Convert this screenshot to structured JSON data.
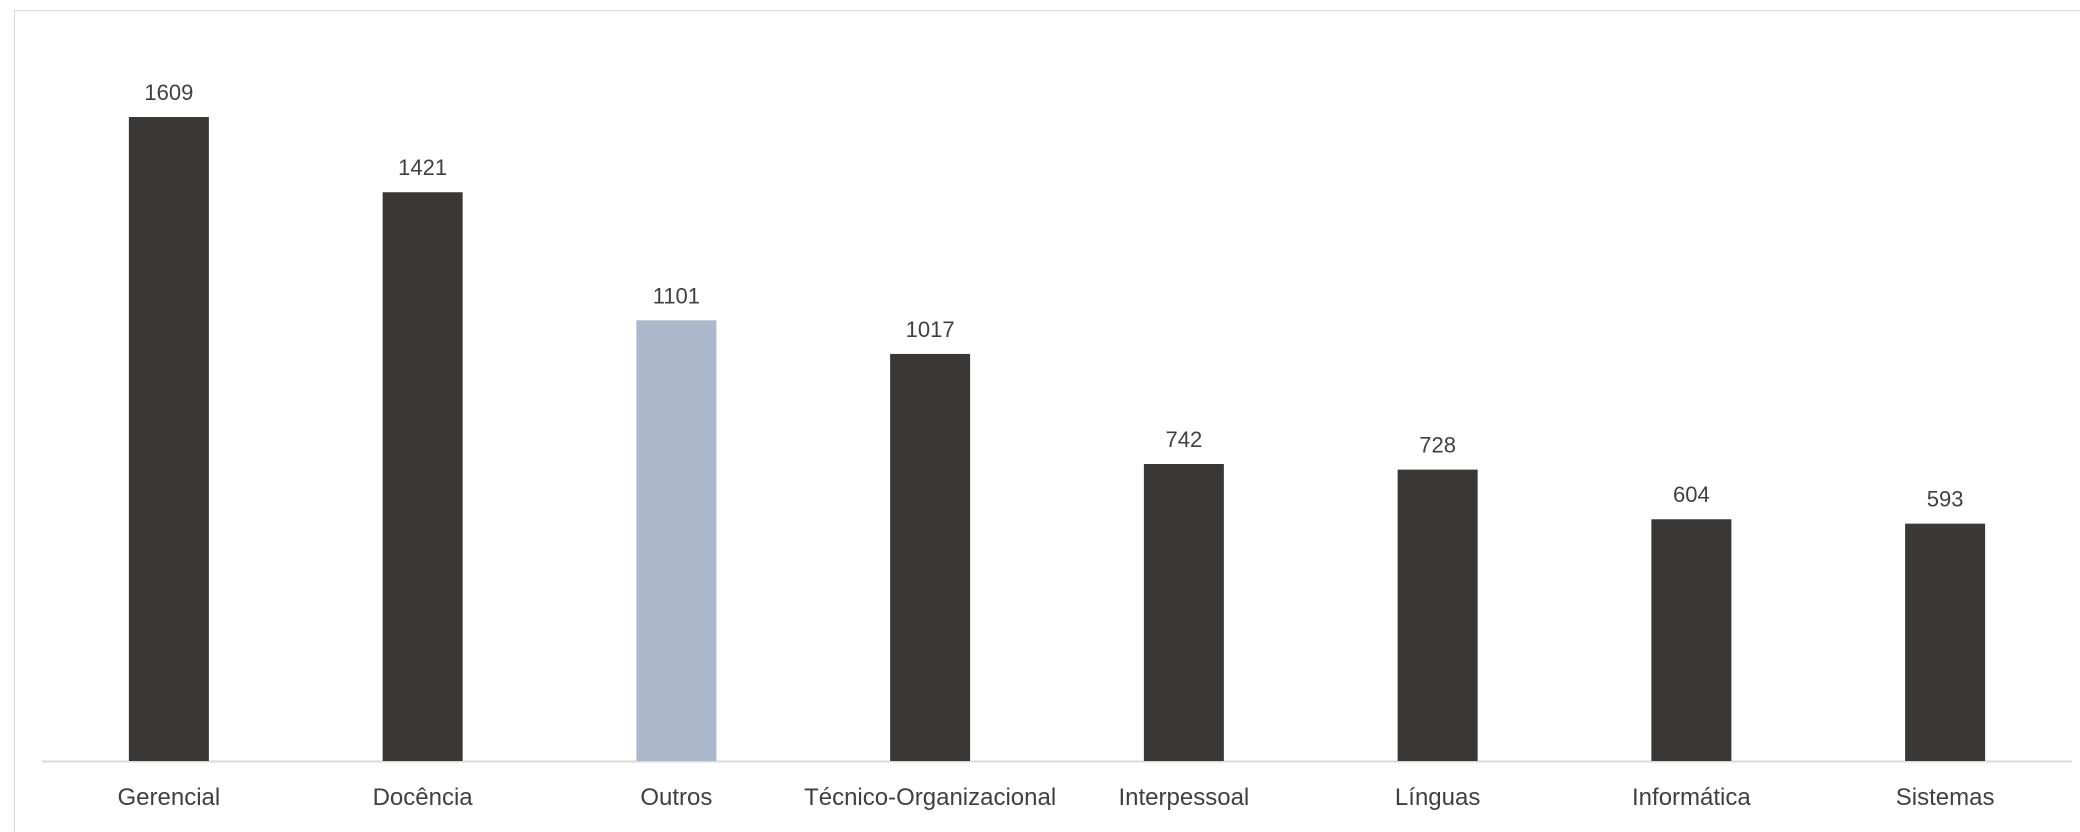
{
  "chart_data": {
    "type": "bar",
    "categories": [
      "Gerencial",
      "Docência",
      "Outros",
      "Técnico-Organizacional",
      "Interpessoal",
      "Línguas",
      "Informática",
      "Sistemas"
    ],
    "values": [
      1609,
      1421,
      1101,
      1017,
      742,
      728,
      604,
      593
    ],
    "highlight_index": 2,
    "colors": {
      "bar": "#393836",
      "highlight": "#abb8cb",
      "axis": "#d9d9d9",
      "text": "#404040"
    },
    "title": "",
    "xlabel": "",
    "ylabel": "",
    "ylim": [
      0,
      1609
    ],
    "grid": false,
    "legend": "none"
  }
}
